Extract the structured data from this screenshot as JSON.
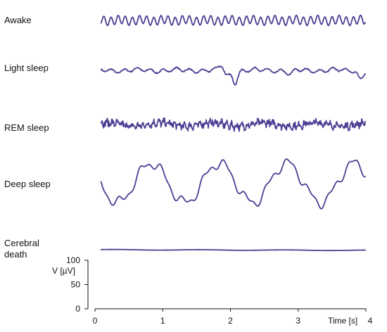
{
  "chart_data": {
    "type": "line",
    "title": "",
    "xlabel": "Time [s]",
    "ylabel": "V [µV]",
    "xlim": [
      0,
      4
    ],
    "ylim": [
      0,
      100
    ],
    "x_ticks": [
      "0",
      "1",
      "2",
      "3",
      "4"
    ],
    "y_ticks": [
      "0",
      "50",
      "100"
    ],
    "grid": false,
    "series": [
      {
        "name": "Awake",
        "kind": "awake"
      },
      {
        "name": "Light sleep",
        "kind": "light"
      },
      {
        "name": "REM sleep",
        "kind": "rem"
      },
      {
        "name": "Deep sleep",
        "kind": "deep"
      },
      {
        "name": "Cerebral death",
        "lines": [
          "Cerebral",
          "death"
        ],
        "kind": "flat"
      }
    ]
  },
  "colors": {
    "trace": "#4b3f94",
    "axis": "#111111"
  }
}
